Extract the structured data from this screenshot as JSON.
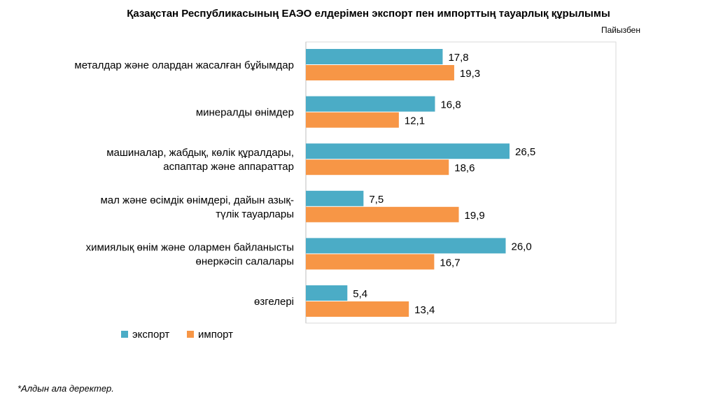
{
  "chart_data": {
    "type": "bar",
    "orientation": "horizontal",
    "title": "Қазақстан Республикасының ЕАЭО елдерімен экспорт пен импорттың тауарлық құрылымы",
    "unit": "Пайызбен",
    "categories": [
      [
        "металдар және олардан жасалған бұйымдар"
      ],
      [
        "минералды өнімдер"
      ],
      [
        "машиналар, жабдық, көлік құралдары,",
        "аспаптар және аппараттар"
      ],
      [
        "мал және өсімдік өнімдері, дайын азық-",
        "түлік тауарлары"
      ],
      [
        "химиялық өнім және олармен байланысты",
        "өнеркәсіп салалары"
      ],
      [
        "өзгелері"
      ]
    ],
    "series": [
      {
        "name": "экспорт",
        "color": "#4BACC6",
        "values": [
          17.8,
          16.8,
          26.5,
          7.5,
          26.0,
          5.4
        ],
        "labels": [
          "17,8",
          "16,8",
          "26,5",
          "7,5",
          "26,0",
          "5,4"
        ]
      },
      {
        "name": "импорт",
        "color": "#F79646",
        "values": [
          19.3,
          12.1,
          18.6,
          19.9,
          16.7,
          13.4
        ],
        "labels": [
          "19,3",
          "12,1",
          "18,6",
          "19,9",
          "16,7",
          "13,4"
        ]
      }
    ],
    "xlim": [
      0,
      40
    ],
    "grid": false,
    "legend": "bottom-left"
  },
  "footnote": "*Алдын ала деректер."
}
